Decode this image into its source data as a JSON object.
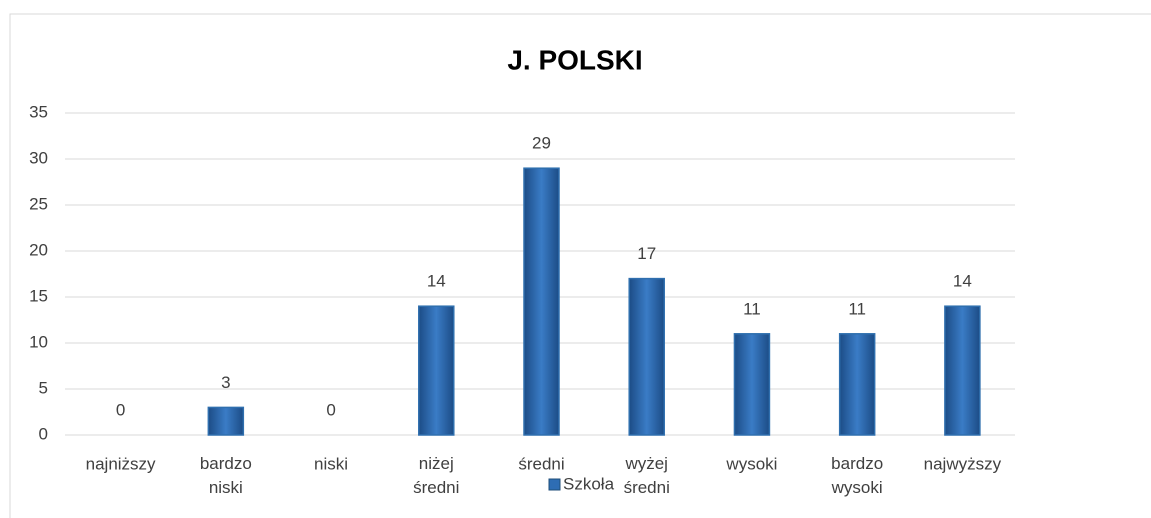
{
  "chart_data": {
    "type": "bar",
    "title": "J. POLSKI",
    "categories": [
      "najniższy",
      "bardzo niski",
      "niski",
      "niżej średni",
      "średni",
      "wyżej średni",
      "wysoki",
      "bardzo wysoki",
      "najwyższy"
    ],
    "series": [
      {
        "name": "Szkoła",
        "color": "#2e6db4",
        "values": [
          0,
          3,
          0,
          14,
          29,
          17,
          11,
          11,
          14
        ]
      }
    ],
    "ylim": [
      0,
      35
    ],
    "yticks": [
      0,
      5,
      10,
      15,
      20,
      25,
      30,
      35
    ],
    "grid": true,
    "legend": "bottom"
  }
}
